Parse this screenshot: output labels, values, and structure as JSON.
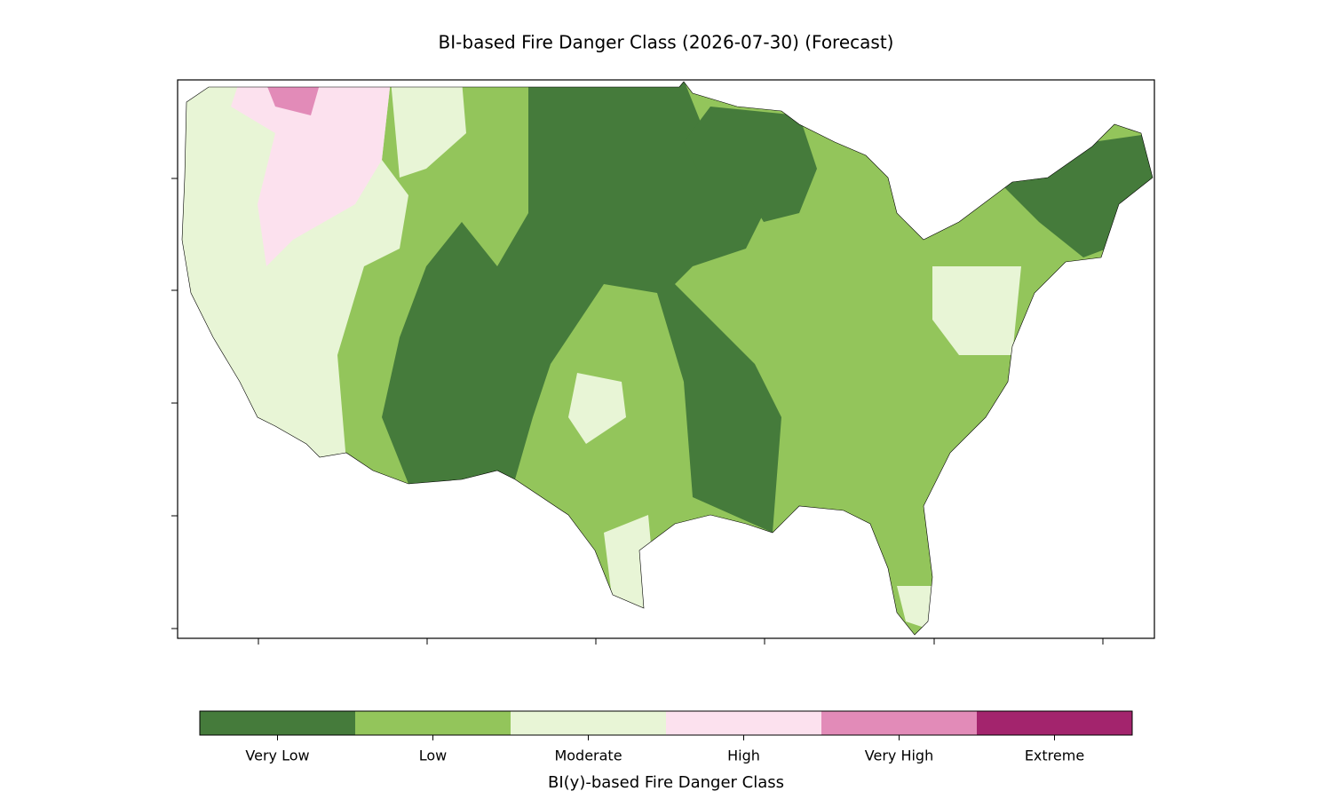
{
  "title": "BI-based Fire Danger Class (2026-07-30) (Forecast)",
  "legend": {
    "label": "BI(y)-based Fire Danger Class",
    "classes": [
      {
        "name": "Very Low",
        "color": "#457b3b"
      },
      {
        "name": "Low",
        "color": "#93c55b"
      },
      {
        "name": "Moderate",
        "color": "#e8f5d6"
      },
      {
        "name": "High",
        "color": "#fce1ee"
      },
      {
        "name": "Very High",
        "color": "#e28bb8"
      },
      {
        "name": "Extreme",
        "color": "#a3246d"
      }
    ]
  }
}
